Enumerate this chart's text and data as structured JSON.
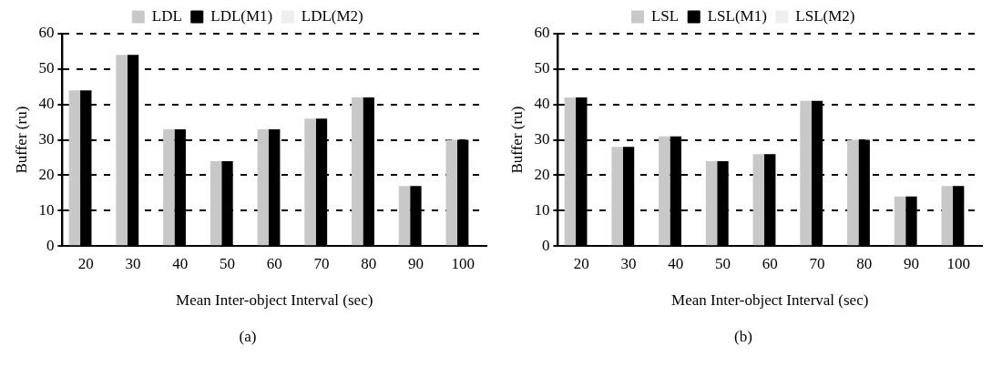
{
  "chart_data": [
    {
      "type": "bar",
      "xlabel": "Mean Inter-object Interval (sec)",
      "ylabel": "Buffer (ru)",
      "categories": [
        "20",
        "30",
        "40",
        "50",
        "60",
        "70",
        "80",
        "90",
        "100"
      ],
      "series": [
        {
          "name": "LDL",
          "color": "#c8c8c8",
          "values": [
            44,
            54,
            33,
            24,
            33,
            36,
            42,
            17,
            30
          ]
        },
        {
          "name": "LDL(M1)",
          "color": "#000000",
          "values": [
            44,
            54,
            33,
            24,
            33,
            36,
            42,
            17,
            30
          ]
        },
        {
          "name": "LDL(M2)",
          "color": "#eeeeee",
          "values": [
            null,
            null,
            null,
            null,
            null,
            null,
            null,
            null,
            null
          ]
        }
      ],
      "ylim": [
        0,
        60
      ],
      "yticks": [
        0,
        10,
        20,
        30,
        40,
        50,
        60
      ],
      "grid": "y",
      "legend": "top",
      "annotations": [
        "(a)"
      ]
    },
    {
      "type": "bar",
      "xlabel": "Mean Inter-object Interval (sec)",
      "ylabel": "Buffer (ru)",
      "categories": [
        "20",
        "30",
        "40",
        "50",
        "60",
        "70",
        "80",
        "90",
        "100"
      ],
      "series": [
        {
          "name": "LSL",
          "color": "#c8c8c8",
          "values": [
            42,
            28,
            31,
            24,
            26,
            41,
            30,
            14,
            17
          ]
        },
        {
          "name": "LSL(M1)",
          "color": "#000000",
          "values": [
            42,
            28,
            31,
            24,
            26,
            41,
            30,
            14,
            17
          ]
        },
        {
          "name": "LSL(M2)",
          "color": "#eeeeee",
          "values": [
            null,
            null,
            null,
            null,
            null,
            null,
            null,
            null,
            null
          ]
        }
      ],
      "ylim": [
        0,
        60
      ],
      "yticks": [
        0,
        10,
        20,
        30,
        40,
        50,
        60
      ],
      "grid": "y",
      "legend": "top",
      "annotations": [
        "(b)"
      ]
    }
  ]
}
